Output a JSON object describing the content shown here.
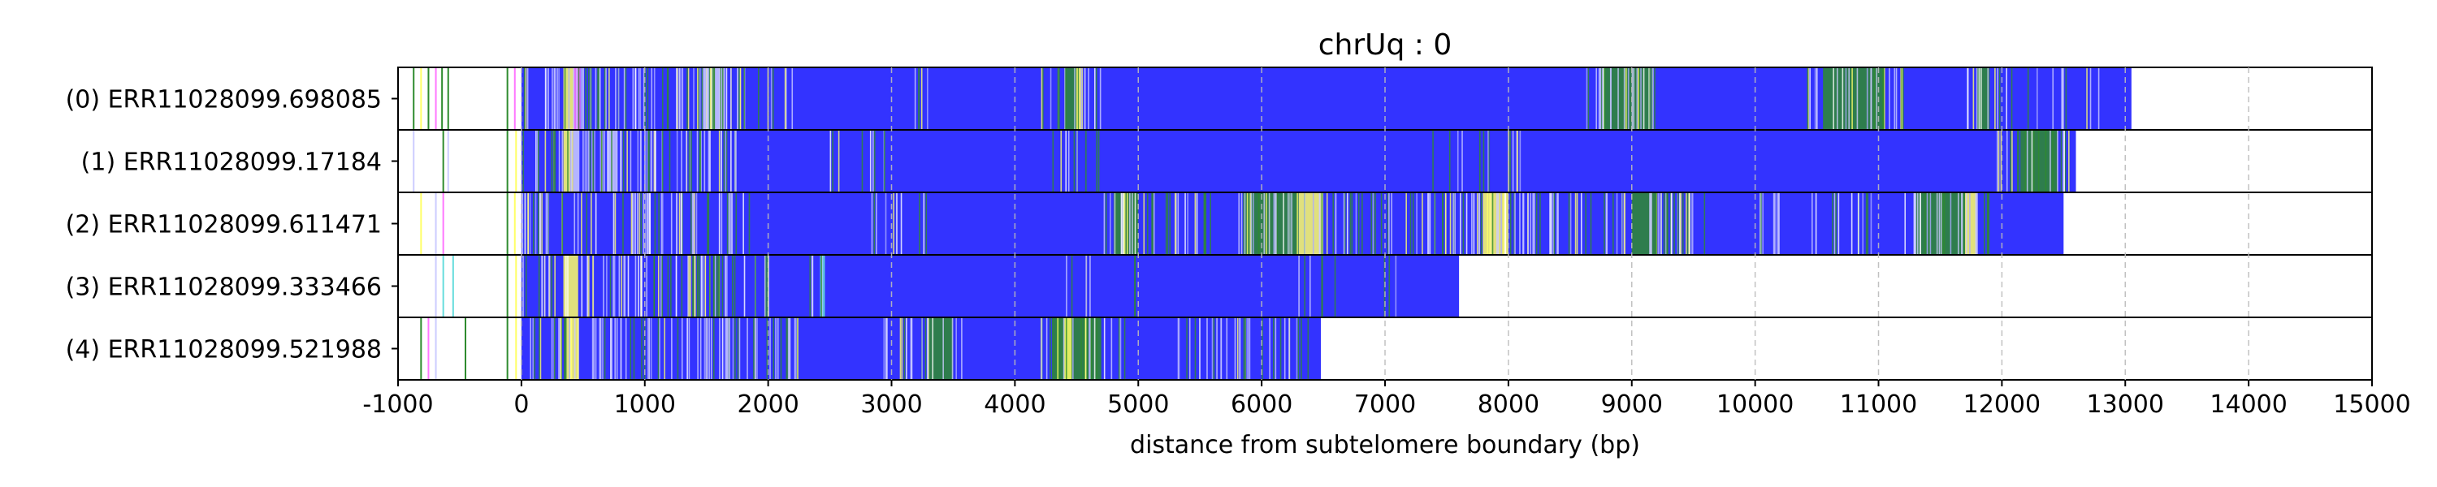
{
  "chart_data": {
    "type": "bar",
    "title": "chrUq : 0",
    "xlabel": "distance from subtelomere boundary (bp)",
    "xlim": [
      -1000,
      15000
    ],
    "xticks": [
      -1000,
      0,
      1000,
      2000,
      3000,
      4000,
      5000,
      6000,
      7000,
      8000,
      9000,
      10000,
      11000,
      12000,
      13000,
      14000,
      15000
    ],
    "xtick_labels": [
      "-1000",
      "0",
      "1000",
      "2000",
      "3000",
      "4000",
      "5000",
      "6000",
      "7000",
      "8000",
      "9000",
      "10000",
      "11000",
      "12000",
      "13000",
      "14000",
      "15000"
    ],
    "grid": "vertical dashed",
    "colors": {
      "telomere_repeat": "#3333ff",
      "variant_green": "#2e8b2e",
      "variant_yellow": "#ffff66",
      "variant_pink": "#ff77ff",
      "variant_light": "#ccccff",
      "variant_cyan": "#66dddd"
    },
    "reads": [
      {
        "label": "(0) ERR11028099.698085",
        "start": -1000,
        "end": 13050,
        "repeat_start": 0,
        "pre_marks": [
          {
            "x": -880,
            "color": "#2e8b2e"
          },
          {
            "x": -820,
            "color": "#ffff66"
          },
          {
            "x": -760,
            "color": "#2e8b2e"
          },
          {
            "x": -700,
            "color": "#ff77ff"
          },
          {
            "x": -650,
            "color": "#2e8b2e"
          },
          {
            "x": -600,
            "color": "#2e8b2e"
          },
          {
            "x": -120,
            "color": "#2e8b2e"
          },
          {
            "x": -60,
            "color": "#ff77ff"
          }
        ],
        "bands": [
          {
            "from": 340,
            "to": 420,
            "color": "#ffff66"
          },
          {
            "from": 420,
            "to": 480,
            "color": "#ff77ff"
          },
          {
            "from": 1500,
            "to": 1650,
            "color": "#ccccff"
          },
          {
            "from": 4400,
            "to": 4500,
            "color": "#2e8b2e"
          },
          {
            "from": 4500,
            "to": 4550,
            "color": "#ffff66"
          },
          {
            "from": 8750,
            "to": 9150,
            "color": "#2e8b2e"
          },
          {
            "from": 10550,
            "to": 11050,
            "color": "#2e8b2e"
          },
          {
            "from": 11800,
            "to": 11900,
            "color": "#2e8b2e"
          }
        ],
        "zones": [
          {
            "from": 0,
            "to": 2200,
            "density": 0.9
          },
          {
            "from": 3100,
            "to": 3300,
            "density": 0.5
          },
          {
            "from": 4200,
            "to": 4700,
            "density": 0.7
          },
          {
            "from": 8600,
            "to": 9300,
            "density": 0.8
          },
          {
            "from": 10400,
            "to": 11200,
            "density": 0.7
          },
          {
            "from": 11700,
            "to": 12900,
            "density": 0.35
          }
        ]
      },
      {
        "label": "(1) ERR11028099.17184",
        "start": -1000,
        "end": 12600,
        "repeat_start": 0,
        "pre_marks": [
          {
            "x": -880,
            "color": "#ccccff"
          },
          {
            "x": -640,
            "color": "#2e8b2e"
          },
          {
            "x": -600,
            "color": "#ccccff"
          },
          {
            "x": -120,
            "color": "#2e8b2e"
          },
          {
            "x": -50,
            "color": "#ffff66"
          }
        ],
        "bands": [
          {
            "from": 340,
            "to": 420,
            "color": "#ffff66"
          },
          {
            "from": 420,
            "to": 470,
            "color": "#ccccff"
          },
          {
            "from": 700,
            "to": 780,
            "color": "#ccccff"
          },
          {
            "from": 12150,
            "to": 12450,
            "color": "#2e8b2e"
          }
        ],
        "zones": [
          {
            "from": 0,
            "to": 1800,
            "density": 0.85
          },
          {
            "from": 2400,
            "to": 3000,
            "density": 0.3
          },
          {
            "from": 4300,
            "to": 4700,
            "density": 0.5
          },
          {
            "from": 7200,
            "to": 8100,
            "density": 0.3
          },
          {
            "from": 11900,
            "to": 12550,
            "density": 0.7
          }
        ]
      },
      {
        "label": "(2) ERR11028099.611471",
        "start": -1000,
        "end": 12500,
        "repeat_start": 0,
        "pre_marks": [
          {
            "x": -820,
            "color": "#ffff66"
          },
          {
            "x": -700,
            "color": "#ccccff"
          },
          {
            "x": -640,
            "color": "#ff77ff"
          },
          {
            "x": -120,
            "color": "#2e8b2e"
          },
          {
            "x": -60,
            "color": "#ffff66"
          }
        ],
        "bands": [
          {
            "from": 4800,
            "to": 5000,
            "color": "#2e8b2e"
          },
          {
            "from": 5850,
            "to": 6300,
            "color": "#2e8b2e"
          },
          {
            "from": 6300,
            "to": 6500,
            "color": "#ffff66"
          },
          {
            "from": 7800,
            "to": 8000,
            "color": "#ffff66"
          },
          {
            "from": 9000,
            "to": 9200,
            "color": "#2e8b2e"
          },
          {
            "from": 11300,
            "to": 11700,
            "color": "#2e8b2e"
          },
          {
            "from": 11700,
            "to": 11800,
            "color": "#ffff66"
          }
        ],
        "zones": [
          {
            "from": 0,
            "to": 1900,
            "density": 0.7
          },
          {
            "from": 2800,
            "to": 3300,
            "density": 0.4
          },
          {
            "from": 4700,
            "to": 5600,
            "density": 0.8
          },
          {
            "from": 5800,
            "to": 9600,
            "density": 0.85
          },
          {
            "from": 10000,
            "to": 11000,
            "density": 0.5
          },
          {
            "from": 11200,
            "to": 11900,
            "density": 0.85
          }
        ]
      },
      {
        "label": "(3) ERR11028099.333466",
        "start": -1000,
        "end": 7600,
        "repeat_start": 0,
        "pre_marks": [
          {
            "x": -700,
            "color": "#ccccff"
          },
          {
            "x": -640,
            "color": "#66dddd"
          },
          {
            "x": -560,
            "color": "#66dddd"
          },
          {
            "x": -120,
            "color": "#2e8b2e"
          },
          {
            "x": -50,
            "color": "#ffff66"
          }
        ],
        "bands": [
          {
            "from": 340,
            "to": 460,
            "color": "#ffff66"
          },
          {
            "from": 2420,
            "to": 2460,
            "color": "#66dddd"
          }
        ],
        "zones": [
          {
            "from": 0,
            "to": 2000,
            "density": 0.85
          },
          {
            "from": 2300,
            "to": 2500,
            "density": 0.5
          },
          {
            "from": 4300,
            "to": 5000,
            "density": 0.2
          },
          {
            "from": 6200,
            "to": 7100,
            "density": 0.2
          }
        ]
      },
      {
        "label": "(4) ERR11028099.521988",
        "start": -1000,
        "end": 6480,
        "repeat_start": 0,
        "pre_marks": [
          {
            "x": -820,
            "color": "#2e8b2e"
          },
          {
            "x": -760,
            "color": "#ff77ff"
          },
          {
            "x": -700,
            "color": "#ccccff"
          },
          {
            "x": -460,
            "color": "#2e8b2e"
          },
          {
            "x": -120,
            "color": "#2e8b2e"
          },
          {
            "x": -50,
            "color": "#ffff66"
          }
        ],
        "bands": [
          {
            "from": 360,
            "to": 460,
            "color": "#ffff66"
          },
          {
            "from": 3300,
            "to": 3500,
            "color": "#2e8b2e"
          },
          {
            "from": 4300,
            "to": 4700,
            "color": "#2e8b2e"
          },
          {
            "from": 4400,
            "to": 4460,
            "color": "#ffff66"
          }
        ],
        "zones": [
          {
            "from": 0,
            "to": 2300,
            "density": 0.85
          },
          {
            "from": 2900,
            "to": 3600,
            "density": 0.6
          },
          {
            "from": 4200,
            "to": 4900,
            "density": 0.8
          },
          {
            "from": 5300,
            "to": 6400,
            "density": 0.6
          }
        ]
      }
    ]
  }
}
